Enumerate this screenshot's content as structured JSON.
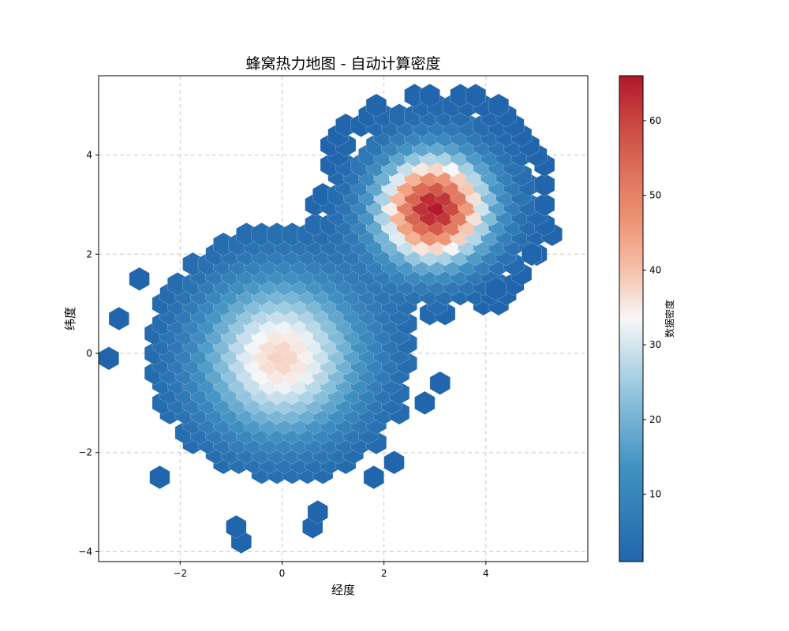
{
  "chart_data": {
    "type": "heatmap",
    "subtype": "hexbin",
    "title": "蜂窝热力地图 - 自动计算密度",
    "xlabel": "经度",
    "ylabel": "纬度",
    "xlim": [
      -3.6,
      6.0
    ],
    "ylim": [
      -4.2,
      5.6
    ],
    "xticks": [
      -2,
      0,
      2,
      4
    ],
    "yticks": [
      -4,
      -2,
      0,
      2,
      4
    ],
    "grid": true,
    "colormap": "RdBu_r",
    "colorbar": {
      "label": "数据密度",
      "range": [
        1,
        66
      ],
      "ticks": [
        10,
        20,
        30,
        40,
        50,
        60
      ]
    },
    "hex_grid": {
      "x0": -1.9,
      "y0": -4.0,
      "dx": 0.3,
      "dy": 0.2
    },
    "clusters": [
      {
        "center": [
          0,
          0
        ],
        "sigma": [
          1.1,
          1.1
        ],
        "peak": 38,
        "extent": 2.6
      },
      {
        "center": [
          3.0,
          3.0
        ],
        "sigma": [
          0.75,
          0.75
        ],
        "peak": 66,
        "extent": 2.4
      }
    ],
    "outliers": [
      [
        -3.4,
        -0.1
      ],
      [
        -3.2,
        0.7
      ],
      [
        -0.8,
        -3.8
      ],
      [
        -0.9,
        -3.5
      ],
      [
        0.6,
        -3.5
      ],
      [
        0.7,
        -3.2
      ],
      [
        2.2,
        -2.2
      ],
      [
        1.8,
        -2.5
      ],
      [
        3.1,
        -0.6
      ],
      [
        2.8,
        -1.0
      ],
      [
        -2.4,
        -2.5
      ],
      [
        -2.8,
        1.5
      ],
      [
        4.2,
        1.3
      ],
      [
        4.9,
        2.0
      ]
    ],
    "peak_value": 66
  }
}
